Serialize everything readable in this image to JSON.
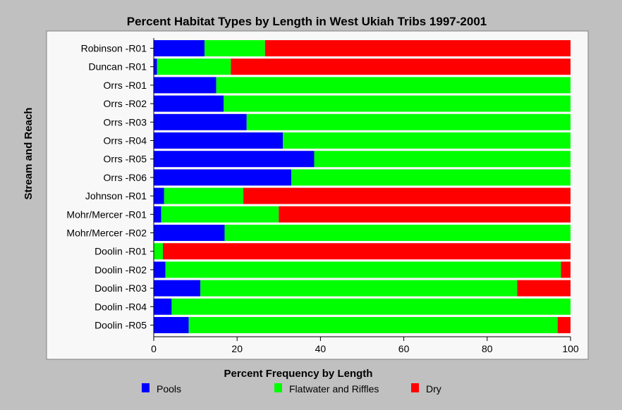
{
  "chart_data": {
    "type": "bar",
    "stacked": true,
    "orientation": "horizontal",
    "title": "Percent Habitat Types by Length in West Ukiah Tribs 1997-2001",
    "xlabel": "Percent Frequency by Length",
    "ylabel": "Stream and Reach",
    "xlim": [
      0,
      100
    ],
    "xticks": [
      "0",
      "20",
      "40",
      "60",
      "80",
      "100"
    ],
    "categories": [
      "Robinson -R01",
      "Duncan -R01",
      "Orrs -R01",
      "Orrs -R02",
      "Orrs -R03",
      "Orrs -R04",
      "Orrs -R05",
      "Orrs -R06",
      "Johnson -R01",
      "Mohr/Mercer -R01",
      "Mohr/Mercer -R02",
      "Doolin -R01",
      "Doolin -R02",
      "Doolin -R03",
      "Doolin -R04",
      "Doolin -R05"
    ],
    "series": [
      {
        "name": "Pools",
        "color": "#0000ff",
        "values": [
          12.2,
          0.8,
          15,
          16.8,
          22.3,
          31,
          38.5,
          33,
          2.5,
          1.8,
          17,
          0,
          2.8,
          11.2,
          4.3,
          8.4
        ]
      },
      {
        "name": "Flatwater and Riffles",
        "color": "#00ff00",
        "values": [
          14.5,
          17.7,
          85,
          83.2,
          77.7,
          69,
          61.5,
          67,
          19,
          28.2,
          83,
          2.2,
          94.9,
          76,
          95.7,
          88.5
        ]
      },
      {
        "name": "Dry",
        "color": "#ff0000",
        "values": [
          73.3,
          81.5,
          0,
          0,
          0,
          0,
          0,
          0,
          78.5,
          70,
          0,
          97.8,
          2.3,
          12.8,
          0,
          3.1
        ]
      }
    ],
    "legend_position": "bottom",
    "grid": false,
    "plot_background": "#f8f8f8",
    "page_background": "#c0c0c0"
  }
}
